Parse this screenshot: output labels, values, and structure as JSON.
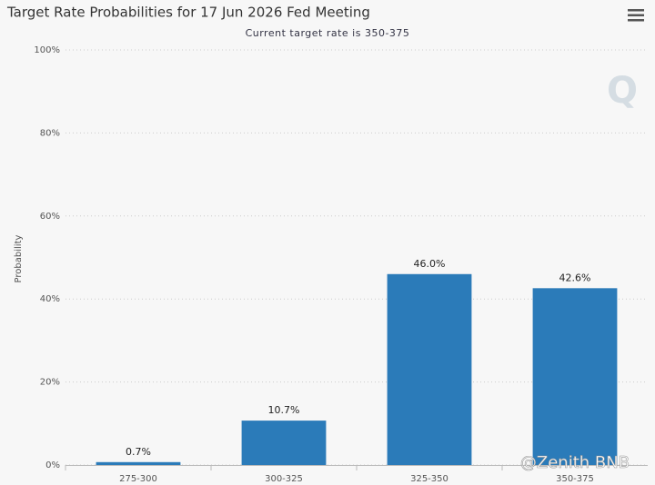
{
  "chart_data": {
    "type": "bar",
    "title": "Target Rate Probabilities for 17 Jun 2026 Fed Meeting",
    "subtitle": "Current target rate is 350-375",
    "y_label": "Probability",
    "categories": [
      "275-300",
      "300-325",
      "325-350",
      "350-375"
    ],
    "values": [
      0.7,
      10.7,
      46.0,
      42.6
    ],
    "value_labels": [
      "0.7%",
      "10.7%",
      "46.0%",
      "42.6%"
    ],
    "color": "#2b7bb9",
    "ylim": [
      0,
      100
    ],
    "yticks": [
      {
        "value": 0,
        "label": "0%"
      },
      {
        "value": 20,
        "label": "20%"
      },
      {
        "value": 40,
        "label": "40%"
      },
      {
        "value": 60,
        "label": "60%"
      },
      {
        "value": 80,
        "label": "80%"
      },
      {
        "value": 100,
        "label": "100%"
      }
    ],
    "grid": true,
    "watermark": "@Zenith BNB"
  }
}
